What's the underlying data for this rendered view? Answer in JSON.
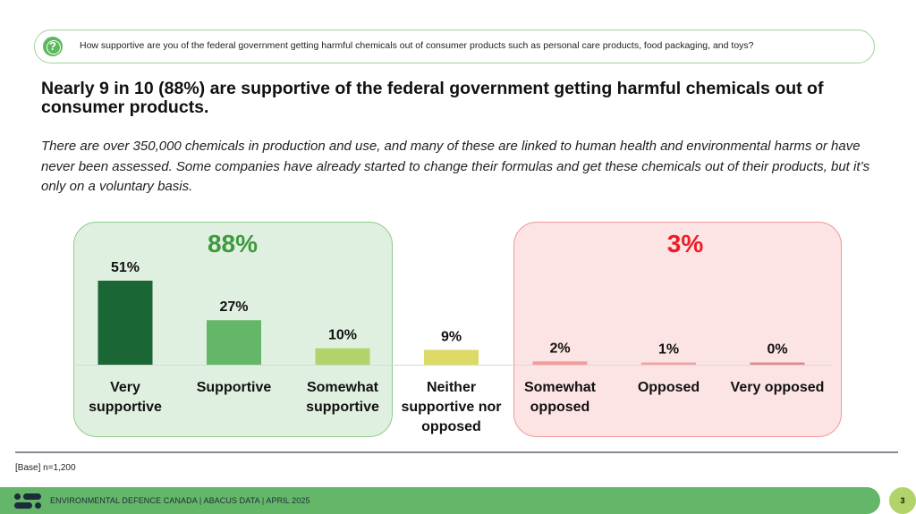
{
  "question": {
    "icon": "question-bubble-icon",
    "text": "How supportive are you of the federal government getting harmful chemicals out of consumer products such as personal care products, food packaging, and toys?"
  },
  "headline": "Nearly 9 in 10 (88%) are supportive of the federal government getting harmful chemicals out of consumer products.",
  "subtext": "There are over 350,000 chemicals in production and use, and many of these are linked to human health and environmental harms or have never been assessed. Some companies have already started to change their formulas and get these chemicals out of their products, but it’s only on a voluntary basis.",
  "groups": {
    "support": {
      "label": "88%",
      "color": "#3d9a3d"
    },
    "oppose": {
      "label": "3%",
      "color": "#ee1c25"
    }
  },
  "chart_data": {
    "type": "bar",
    "title": "",
    "xlabel": "",
    "ylabel": "",
    "ylim": [
      0,
      60
    ],
    "grid": false,
    "categories": [
      [
        "Very",
        "supportive"
      ],
      [
        "Supportive"
      ],
      [
        "Somewhat",
        "supportive"
      ],
      [
        "Neither",
        "supportive nor",
        "opposed"
      ],
      [
        "Somewhat",
        "opposed"
      ],
      [
        "Opposed"
      ],
      [
        "Very opposed"
      ]
    ],
    "values": [
      51,
      27,
      10,
      9,
      2,
      1,
      0
    ],
    "value_labels": [
      "51%",
      "27%",
      "10%",
      "9%",
      "2%",
      "1%",
      "0%"
    ],
    "colors": [
      "#1a6634",
      "#64b768",
      "#b0d46a",
      "#dcd966",
      "#f59a9a",
      "#f4a3a3",
      "#e08a8a"
    ],
    "group_totals": [
      {
        "label": "88%",
        "categories": [
          0,
          1,
          2
        ],
        "name": "Supportive"
      },
      {
        "label": "3%",
        "categories": [
          4,
          5,
          6
        ],
        "name": "Opposed"
      }
    ]
  },
  "base_note": "[Base] n=1,200",
  "footer": {
    "logo": "abacus-logo-icon",
    "text": "ENVIRONMENTAL DEFENCE CANADA |  ABACUS DATA  |  APRIL 2025",
    "page_number": "3"
  }
}
